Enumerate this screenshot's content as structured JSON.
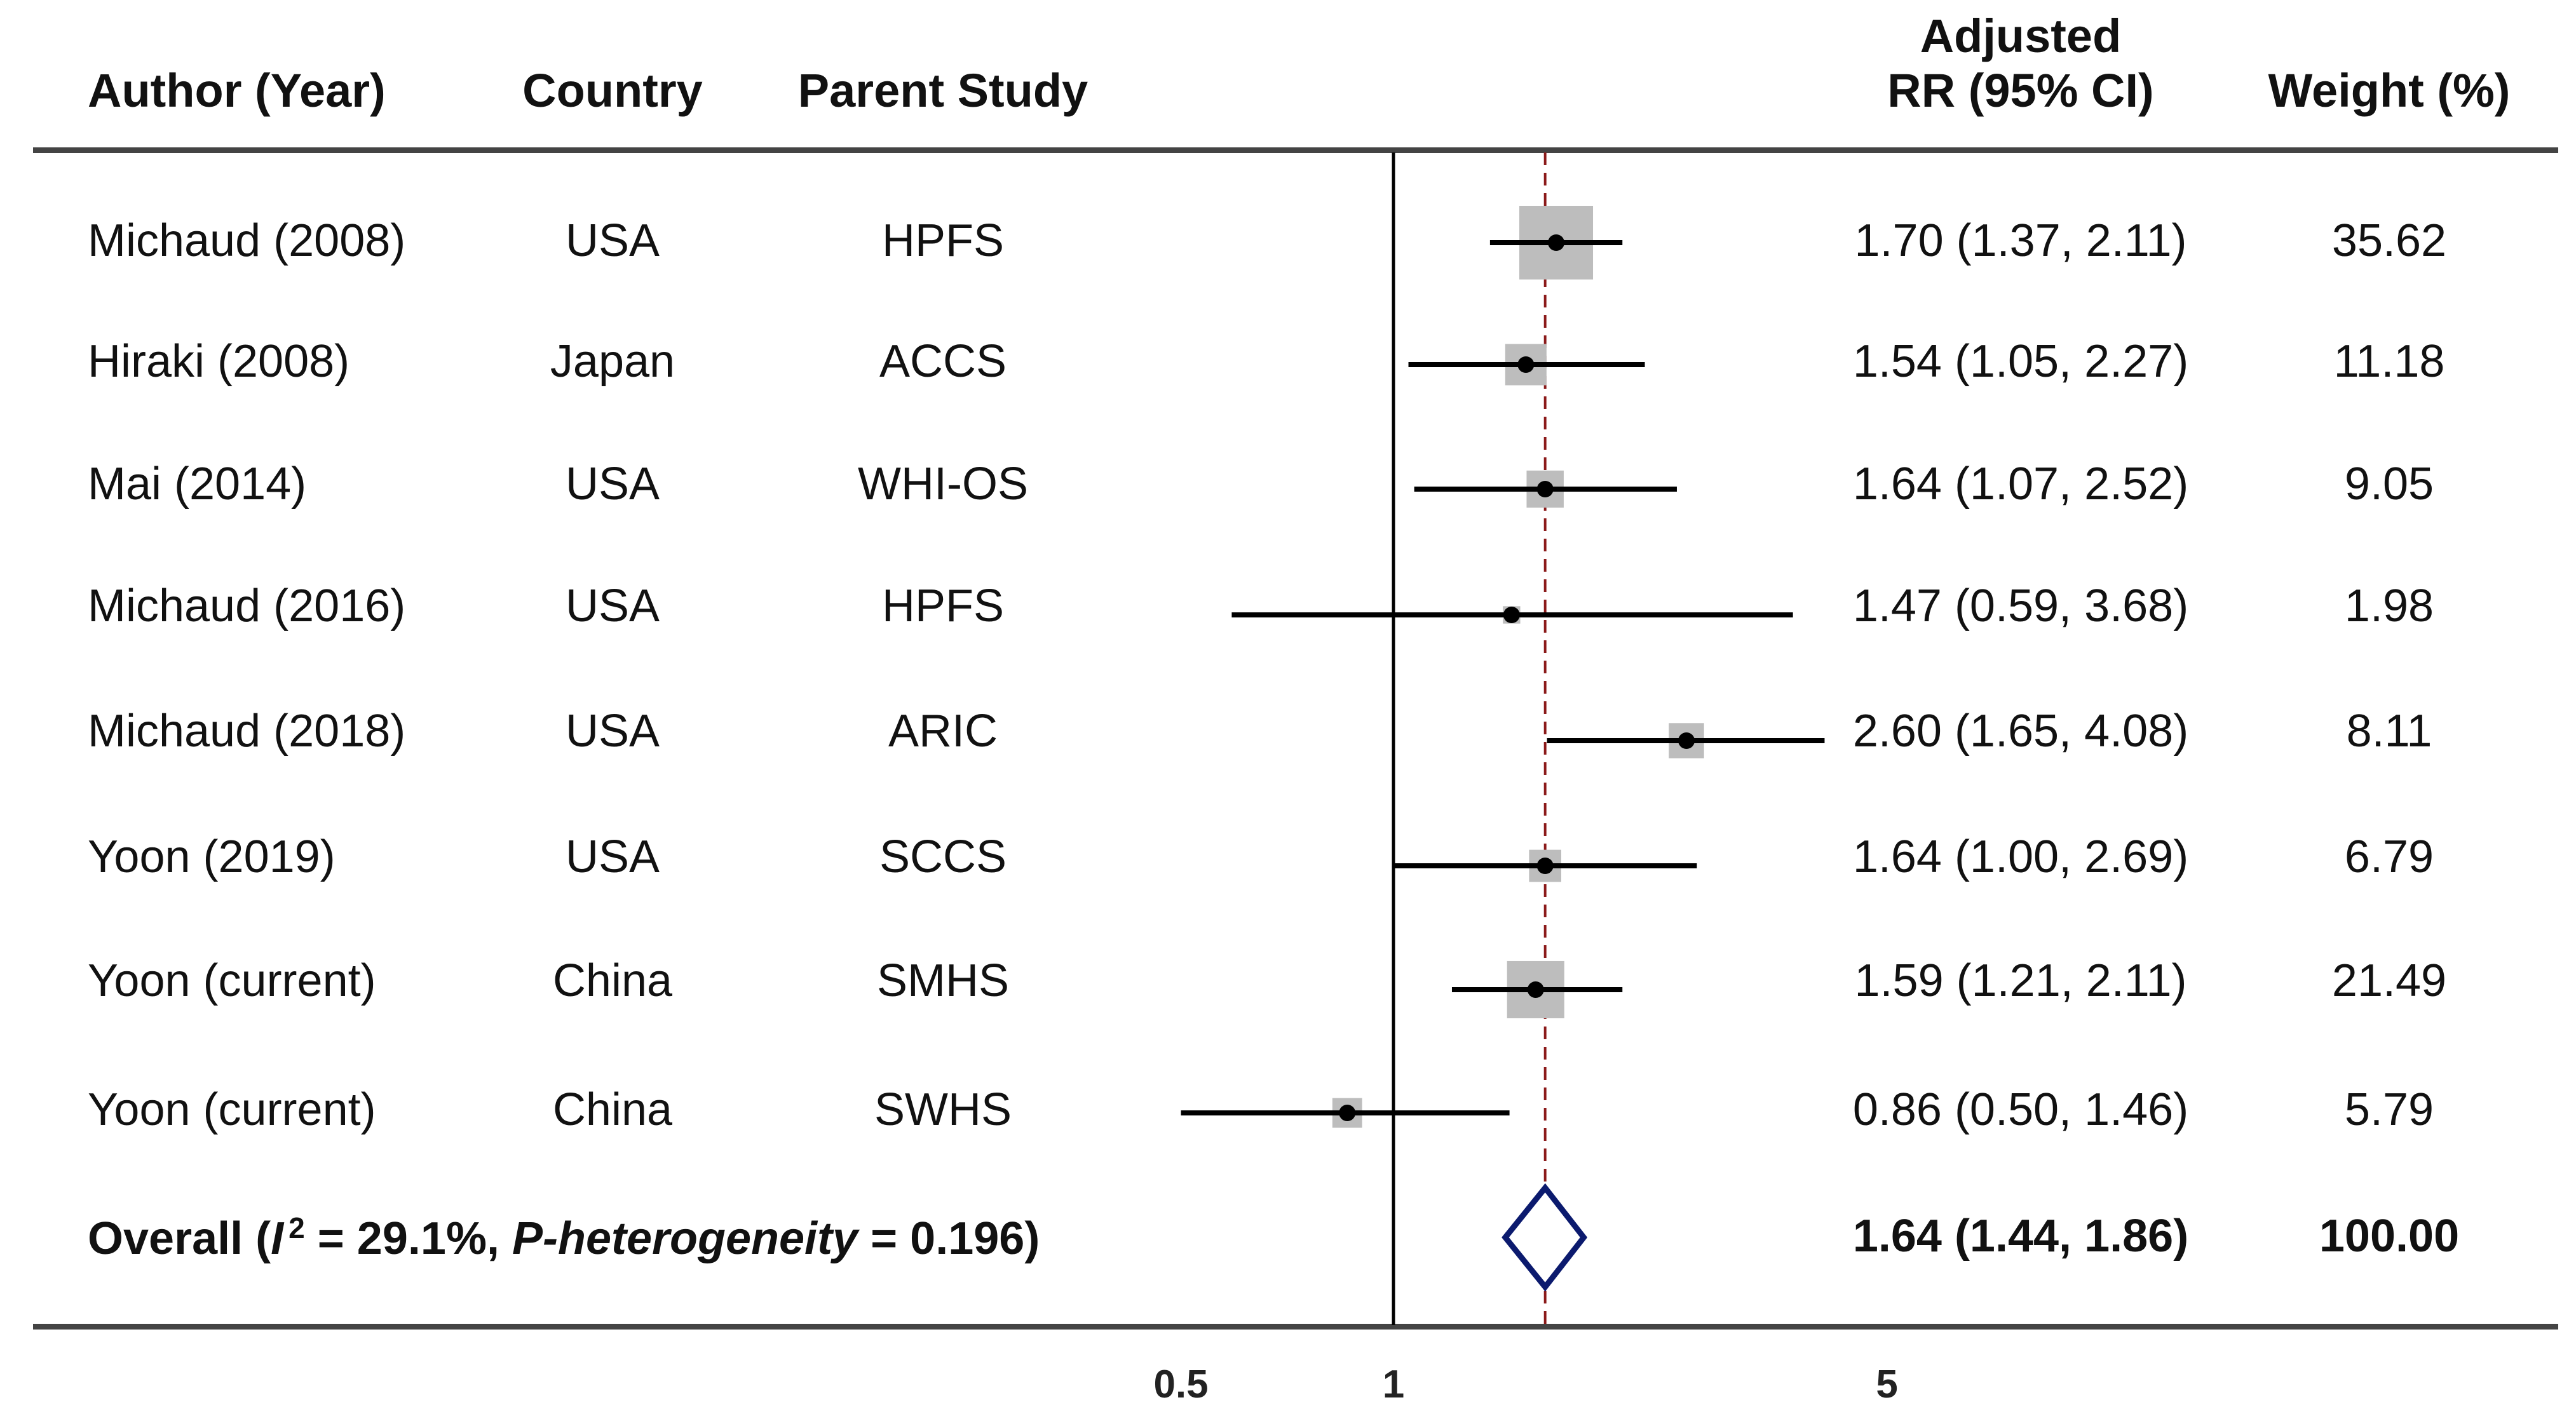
{
  "headers": {
    "author": "Author (Year)",
    "country": "Country",
    "study": "Parent Study",
    "rr_line1": "Adjusted",
    "rr_line2": "RR (95% CI)",
    "weight": "Weight (%)"
  },
  "rows": [
    {
      "author": "Michaud (2008)",
      "country": "USA",
      "study": "HPFS",
      "rr_text": "1.70 (1.37, 2.11)",
      "weight_text": "35.62"
    },
    {
      "author": "Hiraki (2008)",
      "country": "Japan",
      "study": "ACCS",
      "rr_text": "1.54 (1.05, 2.27)",
      "weight_text": "11.18"
    },
    {
      "author": "Mai (2014)",
      "country": "USA",
      "study": "WHI-OS",
      "rr_text": "1.64 (1.07, 2.52)",
      "weight_text": "9.05"
    },
    {
      "author": "Michaud (2016)",
      "country": "USA",
      "study": "HPFS",
      "rr_text": "1.47 (0.59, 3.68)",
      "weight_text": "1.98"
    },
    {
      "author": "Michaud (2018)",
      "country": "USA",
      "study": "ARIC",
      "rr_text": "2.60 (1.65, 4.08)",
      "weight_text": "8.11"
    },
    {
      "author": "Yoon (2019)",
      "country": "USA",
      "study": "SCCS",
      "rr_text": "1.64 (1.00, 2.69)",
      "weight_text": "6.79"
    },
    {
      "author": "Yoon (current)",
      "country": "China",
      "study": "SMHS",
      "rr_text": "1.59 (1.21, 2.11)",
      "weight_text": "21.49"
    },
    {
      "author": "Yoon (current)",
      "country": "China",
      "study": "SWHS",
      "rr_text": "0.86 (0.50, 1.46)",
      "weight_text": "5.79"
    }
  ],
  "overall": {
    "label_prefix": "Overall (",
    "label_i": "I",
    "label_sup": "2",
    "label_mid": " = 29.1%, ",
    "label_p": "P-heterogeneity",
    "label_suffix": " = 0.196)",
    "rr_text": "1.64 (1.44, 1.86)",
    "weight_text": "100.00"
  },
  "chart_data": {
    "type": "forest",
    "x_scale": "log",
    "xlim": [
      0.4,
      10
    ],
    "reference_line": 1,
    "pooled_line": 1.64,
    "ticks": [
      {
        "value": 0.5,
        "label": "0.5"
      },
      {
        "value": 1,
        "label": "1"
      },
      {
        "value": 5,
        "label": "5"
      }
    ],
    "estimates": [
      {
        "rr": 1.7,
        "lo": 1.37,
        "hi": 2.11,
        "weight": 35.62
      },
      {
        "rr": 1.54,
        "lo": 1.05,
        "hi": 2.27,
        "weight": 11.18
      },
      {
        "rr": 1.64,
        "lo": 1.07,
        "hi": 2.52,
        "weight": 9.05
      },
      {
        "rr": 1.47,
        "lo": 0.59,
        "hi": 3.68,
        "weight": 1.98
      },
      {
        "rr": 2.6,
        "lo": 1.65,
        "hi": 4.08,
        "weight": 8.11
      },
      {
        "rr": 1.64,
        "lo": 1.0,
        "hi": 2.69,
        "weight": 6.79
      },
      {
        "rr": 1.59,
        "lo": 1.21,
        "hi": 2.11,
        "weight": 21.49
      },
      {
        "rr": 0.86,
        "lo": 0.5,
        "hi": 1.46,
        "weight": 5.79
      }
    ],
    "overall": {
      "rr": 1.64,
      "lo": 1.44,
      "hi": 1.86,
      "weight": 100.0
    },
    "colors": {
      "box": "#bdbdbd",
      "point": "#000000",
      "ci_line": "#000000",
      "pooled_line": "#8b1a1a",
      "diamond": "#0b1a6e",
      "rule": "#444444"
    }
  }
}
